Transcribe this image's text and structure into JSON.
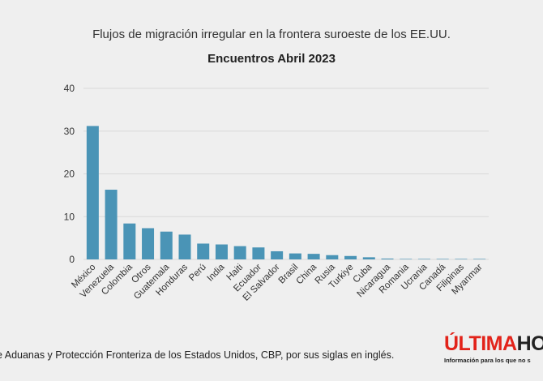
{
  "chart_data": {
    "type": "bar",
    "title": "Flujos de migración irregular en la frontera suroeste de los EE.UU.",
    "subtitle": "Encuentros Abril 2023",
    "categories": [
      "México",
      "Venezuela",
      "Colombia",
      "Otros",
      "Guatemala",
      "Honduras",
      "Perú",
      "India",
      "Haiti",
      "Ecuador",
      "El Salvador",
      "Brasil",
      "China",
      "Rusia",
      "Turkiye",
      "Cuba",
      "Nicaragua",
      "Romania",
      "Ucrania",
      "Canadá",
      "Filipinas",
      "Myanmar"
    ],
    "values": [
      31.2,
      16.3,
      8.4,
      7.3,
      6.5,
      5.8,
      3.7,
      3.5,
      3.1,
      2.8,
      1.9,
      1.4,
      1.3,
      1.0,
      0.8,
      0.5,
      0.2,
      0.1,
      0.05,
      0.05,
      0.05,
      0.05
    ],
    "ylim": [
      0,
      40
    ],
    "yticks": [
      0,
      10,
      20,
      30,
      40
    ],
    "grid": true,
    "bar_color": "#4a94b6",
    "grid_color": "#d8d8d8"
  },
  "source_text": "e Aduanas y Protección Fronteriza de los Estados Unidos, CBP, por sus siglas en inglés.",
  "brand": {
    "name_red": "ÚLTIMA",
    "name_dark": "HOR",
    "tagline": "Información para los que no s"
  }
}
